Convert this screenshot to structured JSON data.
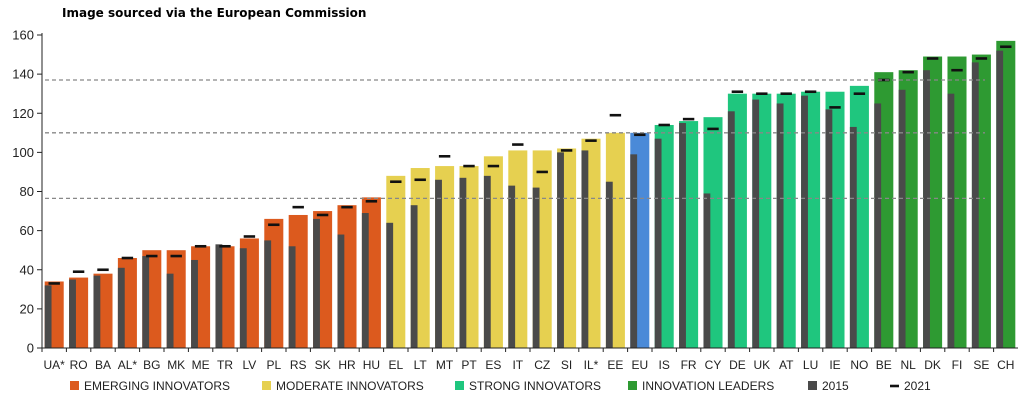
{
  "caption": "Image sourced via the European Commission",
  "colors": {
    "emerging": "#dc5a1e",
    "moderate": "#e6d050",
    "strong": "#1fc67e",
    "leaders": "#2e9a32",
    "eu": "#4a8ad8",
    "bar2015": "#4a4a4a",
    "marker2021": "#111111",
    "gridline": "#888888",
    "axis": "#222222"
  },
  "chart_data": {
    "type": "bar",
    "title": "",
    "xlabel": "",
    "ylabel": "",
    "ylim": [
      0,
      160
    ],
    "yticks": [
      0,
      20,
      40,
      60,
      80,
      100,
      120,
      140,
      160
    ],
    "reference_lines": [
      76.5,
      110,
      137
    ],
    "categories": [
      "UA*",
      "RO",
      "BA",
      "AL*",
      "BG",
      "MK",
      "ME",
      "TR",
      "LV",
      "PL",
      "RS",
      "SK",
      "HR",
      "HU",
      "EL",
      "LT",
      "MT",
      "PT",
      "ES",
      "IT",
      "CZ",
      "SI",
      "IL*",
      "EE",
      "EU",
      "IS",
      "FR",
      "CY",
      "DE",
      "UK",
      "AT",
      "LU",
      "IE",
      "NO",
      "BE",
      "NL",
      "DK",
      "FI",
      "SE",
      "CH"
    ],
    "groups": [
      "emerging",
      "emerging",
      "emerging",
      "emerging",
      "emerging",
      "emerging",
      "emerging",
      "emerging",
      "emerging",
      "emerging",
      "emerging",
      "emerging",
      "emerging",
      "emerging",
      "moderate",
      "moderate",
      "moderate",
      "moderate",
      "moderate",
      "moderate",
      "moderate",
      "moderate",
      "moderate",
      "moderate",
      "eu",
      "strong",
      "strong",
      "strong",
      "strong",
      "strong",
      "strong",
      "strong",
      "strong",
      "strong",
      "leaders",
      "leaders",
      "leaders",
      "leaders",
      "leaders",
      "leaders"
    ],
    "series": [
      {
        "name": "",
        "key": "current",
        "values": [
          34,
          36,
          38,
          46,
          50,
          50,
          52,
          52,
          56,
          66,
          68,
          70,
          73,
          77,
          88,
          92,
          93,
          93,
          98,
          101,
          101,
          102,
          107,
          110,
          110,
          114,
          116,
          118,
          130,
          130,
          130,
          131,
          131,
          134,
          141,
          142,
          149,
          149,
          150,
          157
        ]
      },
      {
        "name": "2015",
        "key": "y2015",
        "values": [
          32,
          35,
          37,
          41,
          47,
          38,
          45,
          53,
          51,
          55,
          52,
          66,
          58,
          69,
          64,
          73,
          86,
          87,
          88,
          83,
          82,
          100,
          101,
          85,
          99,
          107,
          115,
          79,
          121,
          127,
          125,
          129,
          122,
          113,
          125,
          132,
          142,
          130,
          146,
          152
        ]
      },
      {
        "name": "2021",
        "key": "y2021",
        "values": [
          33,
          39,
          40,
          46,
          47,
          47,
          52,
          52,
          57,
          63,
          72,
          68,
          72,
          75,
          85,
          86,
          98,
          93,
          93,
          104,
          90,
          101,
          106,
          119,
          109,
          114,
          117,
          112,
          131,
          130,
          130,
          131,
          123,
          130,
          137,
          141,
          148,
          142,
          148,
          154
        ]
      }
    ],
    "legend": [
      {
        "key": "emerging",
        "label": "EMERGING INNOVATORS",
        "kind": "swatch"
      },
      {
        "key": "moderate",
        "label": "MODERATE INNOVATORS",
        "kind": "swatch"
      },
      {
        "key": "strong",
        "label": "STRONG INNOVATORS",
        "kind": "swatch"
      },
      {
        "key": "leaders",
        "label": "INNOVATION LEADERS",
        "kind": "swatch"
      },
      {
        "key": "bar2015",
        "label": "2015",
        "kind": "swatch"
      },
      {
        "key": "marker2021",
        "label": "2021",
        "kind": "dash"
      }
    ],
    "legend_position": "bottom",
    "grid": false
  }
}
